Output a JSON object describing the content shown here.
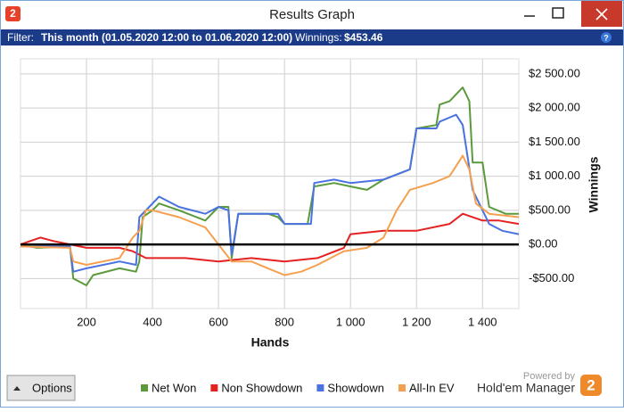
{
  "window": {
    "app_icon": "2",
    "title": "Results Graph",
    "filter_label": "Filter:",
    "filter_value": "This month (01.05.2020 12:00 to 01.06.2020 12:00)",
    "winnings_label": "Winnings:",
    "winnings_value": "$453.46",
    "help": "?",
    "options_button": "Options",
    "powered_by": "Powered by",
    "brand": "Hold'em Manager",
    "brand_icon": "2"
  },
  "chart_data": {
    "type": "line",
    "x_label": "Hands",
    "y_label": "Winnings",
    "xlim": [
      0,
      1510
    ],
    "ylim": [
      -940,
      2720
    ],
    "xticks": [
      200,
      400,
      600,
      800,
      {
        "value": 1000,
        "label": "1 000"
      },
      {
        "value": 1200,
        "label": "1 200"
      },
      {
        "value": 1400,
        "label": "1 400"
      }
    ],
    "yticks": [
      {
        "value": -500,
        "label": "-$500.00"
      },
      {
        "value": 0,
        "label": "$0.00"
      },
      {
        "value": 500,
        "label": "$500.00"
      },
      {
        "value": 1000,
        "label": "$1 000.00"
      },
      {
        "value": 1500,
        "label": "$1 500.00"
      },
      {
        "value": 2000,
        "label": "$2 000.00"
      },
      {
        "value": 2500,
        "label": "$2 500.00"
      }
    ],
    "grid": true,
    "y_axis_side": "right",
    "series": [
      {
        "name": "Net Won",
        "color": "#5b9a3c",
        "x": [
          0,
          50,
          150,
          160,
          200,
          220,
          300,
          350,
          360,
          370,
          400,
          420,
          480,
          560,
          600,
          630,
          640,
          660,
          750,
          780,
          800,
          870,
          890,
          950,
          1000,
          1050,
          1100,
          1180,
          1200,
          1260,
          1270,
          1300,
          1340,
          1360,
          1370,
          1400,
          1420,
          1470,
          1510
        ],
        "values": [
          0,
          -50,
          -30,
          -500,
          -600,
          -450,
          -350,
          -400,
          -250,
          400,
          500,
          600,
          500,
          350,
          550,
          550,
          -200,
          450,
          450,
          400,
          300,
          300,
          850,
          900,
          850,
          800,
          950,
          1100,
          1700,
          1750,
          2050,
          2100,
          2300,
          2100,
          1200,
          1200,
          550,
          450,
          450
        ]
      },
      {
        "name": "Non Showdown",
        "color": "#e52222",
        "x": [
          0,
          60,
          100,
          200,
          300,
          340,
          380,
          500,
          600,
          700,
          800,
          900,
          980,
          1000,
          1100,
          1200,
          1300,
          1340,
          1400,
          1450,
          1510
        ],
        "values": [
          0,
          100,
          50,
          -50,
          -50,
          -100,
          -200,
          -200,
          -250,
          -200,
          -250,
          -200,
          -50,
          150,
          200,
          200,
          300,
          450,
          350,
          350,
          300
        ]
      },
      {
        "name": "Showdown",
        "color": "#4a72e0",
        "x": [
          0,
          150,
          160,
          200,
          300,
          350,
          360,
          420,
          480,
          560,
          600,
          630,
          640,
          660,
          750,
          780,
          800,
          880,
          890,
          950,
          1000,
          1100,
          1180,
          1200,
          1260,
          1270,
          1320,
          1340,
          1370,
          1420,
          1460,
          1510
        ],
        "values": [
          -30,
          -30,
          -400,
          -350,
          -250,
          -300,
          400,
          700,
          550,
          450,
          550,
          500,
          -150,
          450,
          450,
          450,
          300,
          300,
          900,
          950,
          900,
          950,
          1100,
          1700,
          1700,
          1800,
          1900,
          1750,
          800,
          300,
          200,
          150
        ]
      },
      {
        "name": "All-In EV",
        "color": "#f5a050",
        "x": [
          0,
          150,
          160,
          200,
          300,
          340,
          360,
          380,
          400,
          480,
          560,
          640,
          700,
          750,
          800,
          850,
          900,
          980,
          1050,
          1100,
          1140,
          1180,
          1250,
          1300,
          1340,
          1360,
          1380,
          1420,
          1510
        ],
        "values": [
          -30,
          -50,
          -250,
          -300,
          -200,
          100,
          200,
          500,
          500,
          400,
          250,
          -250,
          -250,
          -350,
          -450,
          -400,
          -300,
          -100,
          -50,
          100,
          500,
          800,
          900,
          1000,
          1300,
          1100,
          600,
          450,
          400
        ]
      }
    ]
  }
}
